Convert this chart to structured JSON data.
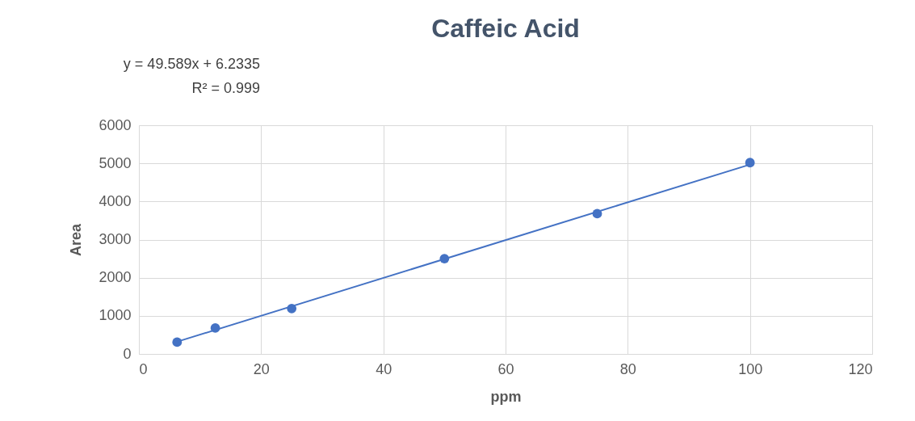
{
  "chart_data": {
    "type": "scatter",
    "title": "Caffeic Acid",
    "xlabel": "ppm",
    "ylabel": "Area",
    "annotations": [
      "y = 49.589x + 6.2335",
      "R² = 0.999"
    ],
    "series": [
      {
        "color": "#4472c4",
        "x": [
          6.25,
          12.5,
          25,
          50,
          75,
          100
        ],
        "values": [
          310,
          680,
          1190,
          2500,
          3680,
          5020
        ],
        "marker": "circle"
      },
      {
        "type": "line",
        "color": "#4472c4",
        "x": [
          6.25,
          100
        ],
        "values": [
          320,
          4970
        ],
        "line_style": "solid"
      }
    ],
    "xlim": [
      0,
      120
    ],
    "xticks": [
      0,
      20,
      40,
      60,
      80,
      100,
      120
    ],
    "ylim": [
      0,
      6000
    ],
    "yticks": [
      0,
      1000,
      2000,
      3000,
      4000,
      5000,
      6000
    ],
    "grid": true
  }
}
